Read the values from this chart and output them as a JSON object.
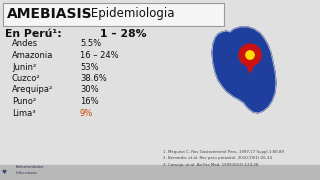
{
  "title_bold": "AMEBIASIS",
  "title_dash": " - ",
  "title_regular": "Epidemiologia",
  "bg_color": "#e0e0e0",
  "title_box_color": "#f5f5f5",
  "title_box_edge": "#999999",
  "main_label": "En Perú¹:",
  "main_value": "1 – 28%",
  "rows": [
    {
      "label": "Andes",
      "value": "5.5%",
      "bold": false
    },
    {
      "label": "Amazonia",
      "value": "16 – 24%",
      "bold": false
    },
    {
      "label": "Junin²",
      "value": "53%",
      "bold": false
    },
    {
      "label": "Cuzco²",
      "value": "38.6%",
      "bold": false
    },
    {
      "label": "Arequipa²",
      "value": "30%",
      "bold": false
    },
    {
      "label": "Puno²",
      "value": "16%",
      "bold": false
    },
    {
      "label": "Lima³",
      "value": "9%",
      "bold": false
    }
  ],
  "refs": [
    "1. Méquina C. Rev Gastroenterol Peru. 1997;17 Suppl 1:80-89",
    "2. Bernardo, et al. Rev peru parasitol. 2010;19(1):26-34",
    "3. Cornejo, et al. An Fac Med. 1999;60(2):124-28"
  ],
  "map_color": "#1e3f9e",
  "map_edge_color": "#d0d0d0",
  "pin_color": "#cc1111",
  "pin_dot_color": "#ffdd00",
  "text_color": "#111111",
  "ref_color": "#444444",
  "bottom_bar_color": "#b8b8b8",
  "logo_text_color": "#333355",
  "peru_x": [
    230,
    234,
    240,
    248,
    254,
    260,
    264,
    268,
    271,
    273,
    275,
    276,
    275,
    272,
    268,
    263,
    258,
    253,
    249,
    246,
    244,
    241,
    238,
    234,
    230,
    226,
    222,
    218,
    215,
    213,
    212,
    213,
    215,
    218,
    222,
    226,
    230
  ],
  "peru_y": [
    148,
    151,
    153,
    153,
    151,
    147,
    142,
    135,
    127,
    118,
    108,
    97,
    87,
    79,
    73,
    69,
    67,
    68,
    71,
    74,
    77,
    79,
    81,
    83,
    86,
    89,
    94,
    100,
    108,
    117,
    127,
    136,
    142,
    146,
    148,
    149,
    148
  ]
}
